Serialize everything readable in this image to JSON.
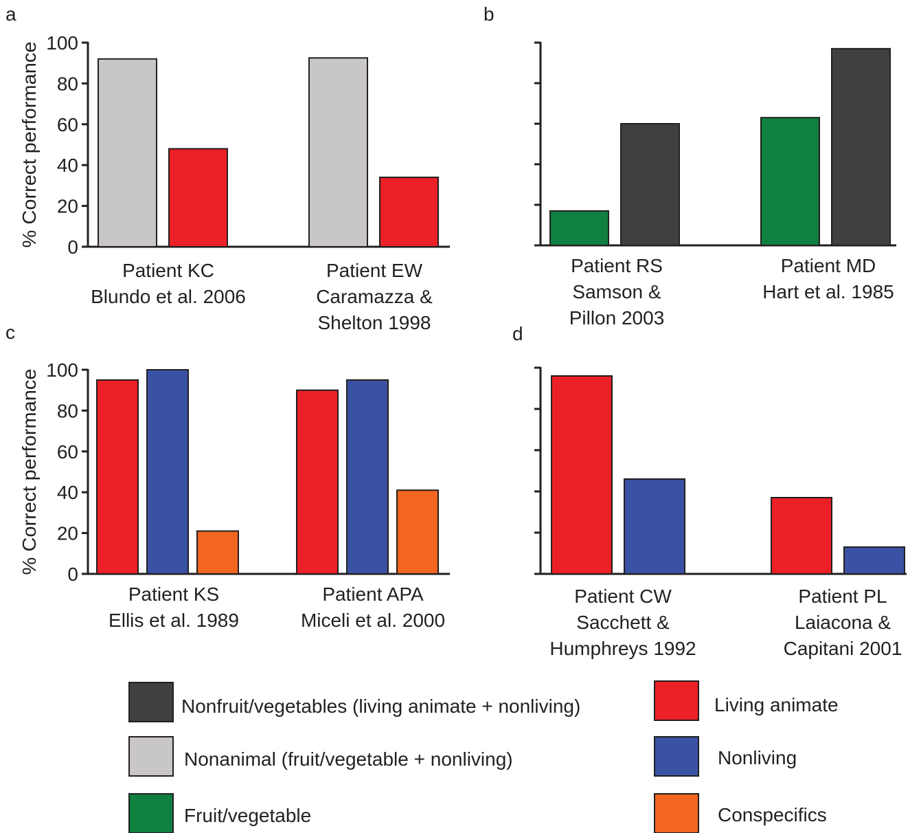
{
  "colors": {
    "nonfruit_vegetables": "#404040",
    "nonanimal": "#c8c6c7",
    "fruit_vegetable": "#0f8040",
    "living_animate": "#ec2027",
    "nonliving": "#3a52a4",
    "conspecifics": "#f26622",
    "axis": "#231f20"
  },
  "legend": [
    {
      "key": "nonfruit_vegetables",
      "label": "Nonfruit/vegetables (living animate + nonliving)"
    },
    {
      "key": "nonanimal",
      "label": "Nonanimal (fruit/vegetable + nonliving)"
    },
    {
      "key": "fruit_vegetable",
      "label": "Fruit/vegetable"
    },
    {
      "key": "living_animate",
      "label": "Living animate"
    },
    {
      "key": "nonliving",
      "label": "Nonliving"
    },
    {
      "key": "conspecifics",
      "label": "Conspecifics"
    }
  ],
  "chart_data": [
    {
      "panel": "a",
      "type": "bar",
      "ylabel": "% Correct performance",
      "ylim": [
        0,
        100
      ],
      "yticks": [
        "0",
        "20",
        "40",
        "60",
        "80",
        "100"
      ],
      "groups": [
        {
          "label_lines": [
            "Patient KC",
            "Blundo et al. 2006"
          ],
          "bars": [
            {
              "series": "nonanimal",
              "value": 92
            },
            {
              "series": "living_animate",
              "value": 48
            }
          ]
        },
        {
          "label_lines": [
            "Patient EW",
            "Caramazza &",
            "Shelton 1998"
          ],
          "bars": [
            {
              "series": "nonanimal",
              "value": 92.5
            },
            {
              "series": "living_animate",
              "value": 34
            }
          ]
        }
      ]
    },
    {
      "panel": "b",
      "type": "bar",
      "ylabel": "",
      "ylim": [
        0,
        100
      ],
      "yticks": [],
      "groups": [
        {
          "label_lines": [
            "Patient RS",
            "Samson &",
            "Pillon 2003"
          ],
          "bars": [
            {
              "series": "fruit_vegetable",
              "value": 17
            },
            {
              "series": "nonfruit_vegetables",
              "value": 60
            }
          ]
        },
        {
          "label_lines": [
            "Patient MD",
            "Hart et al. 1985"
          ],
          "bars": [
            {
              "series": "fruit_vegetable",
              "value": 63
            },
            {
              "series": "nonfruit_vegetables",
              "value": 97
            }
          ]
        }
      ]
    },
    {
      "panel": "c",
      "type": "bar",
      "ylabel": "% Correct performance",
      "ylim": [
        0,
        100
      ],
      "yticks": [
        "0",
        "20",
        "40",
        "60",
        "80",
        "100"
      ],
      "groups": [
        {
          "label_lines": [
            "Patient KS",
            "Ellis et al. 1989"
          ],
          "bars": [
            {
              "series": "living_animate",
              "value": 95
            },
            {
              "series": "nonliving",
              "value": 100
            },
            {
              "series": "conspecifics",
              "value": 21
            }
          ]
        },
        {
          "label_lines": [
            "Patient APA",
            "Miceli et al. 2000"
          ],
          "bars": [
            {
              "series": "living_animate",
              "value": 90
            },
            {
              "series": "nonliving",
              "value": 95
            },
            {
              "series": "conspecifics",
              "value": 41
            }
          ]
        }
      ]
    },
    {
      "panel": "d",
      "type": "bar",
      "ylabel": "",
      "ylim": [
        0,
        100
      ],
      "yticks": [],
      "groups": [
        {
          "label_lines": [
            "Patient CW",
            "Sacchett &",
            "Humphreys 1992"
          ],
          "bars": [
            {
              "series": "living_animate",
              "value": 96
            },
            {
              "series": "nonliving",
              "value": 46
            }
          ]
        },
        {
          "label_lines": [
            "Patient PL",
            "Laiacona &",
            "Capitani 2001"
          ],
          "bars": [
            {
              "series": "living_animate",
              "value": 37
            },
            {
              "series": "nonliving",
              "value": 13
            }
          ]
        }
      ]
    }
  ]
}
